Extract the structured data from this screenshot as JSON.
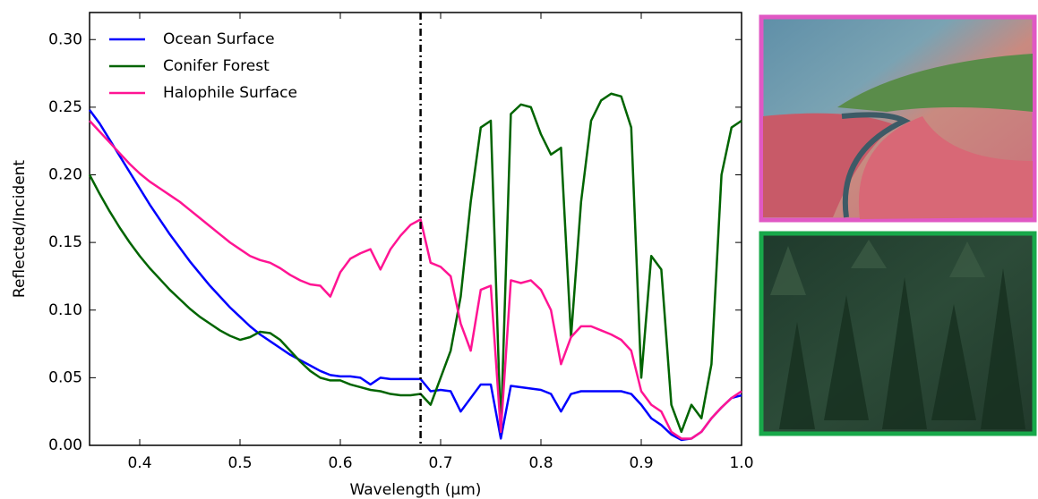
{
  "chart_data": {
    "type": "line",
    "x_label": "Wavelength (μm)",
    "y_label": "Reflected/Incident",
    "x": [
      0.35,
      0.36,
      0.37,
      0.38,
      0.39,
      0.4,
      0.41,
      0.42,
      0.43,
      0.44,
      0.45,
      0.46,
      0.47,
      0.48,
      0.49,
      0.5,
      0.51,
      0.52,
      0.53,
      0.54,
      0.55,
      0.56,
      0.57,
      0.58,
      0.59,
      0.6,
      0.61,
      0.62,
      0.63,
      0.64,
      0.65,
      0.66,
      0.67,
      0.68,
      0.69,
      0.7,
      0.71,
      0.72,
      0.73,
      0.74,
      0.75,
      0.76,
      0.77,
      0.78,
      0.79,
      0.8,
      0.81,
      0.82,
      0.83,
      0.84,
      0.85,
      0.86,
      0.87,
      0.88,
      0.89,
      0.9,
      0.91,
      0.92,
      0.93,
      0.94,
      0.95,
      0.96,
      0.97,
      0.98,
      0.99,
      1.0
    ],
    "series": [
      {
        "name": "Ocean Surface",
        "color": "#0000ff",
        "values": [
          0.248,
          0.238,
          0.226,
          0.214,
          0.202,
          0.19,
          0.178,
          0.167,
          0.156,
          0.146,
          0.136,
          0.127,
          0.118,
          0.11,
          0.102,
          0.095,
          0.088,
          0.082,
          0.077,
          0.072,
          0.067,
          0.063,
          0.059,
          0.055,
          0.052,
          0.051,
          0.051,
          0.05,
          0.045,
          0.05,
          0.049,
          0.049,
          0.049,
          0.049,
          0.04,
          0.041,
          0.04,
          0.025,
          0.035,
          0.045,
          0.045,
          0.005,
          0.044,
          0.043,
          0.042,
          0.041,
          0.038,
          0.025,
          0.038,
          0.04,
          0.04,
          0.04,
          0.04,
          0.04,
          0.038,
          0.03,
          0.02,
          0.015,
          0.008,
          0.004,
          0.005,
          0.01,
          0.02,
          0.028,
          0.035,
          0.037
        ]
      },
      {
        "name": "Conifer Forest",
        "color": "#006400",
        "values": [
          0.2,
          0.186,
          0.173,
          0.161,
          0.15,
          0.14,
          0.131,
          0.123,
          0.115,
          0.108,
          0.101,
          0.095,
          0.09,
          0.085,
          0.081,
          0.078,
          0.08,
          0.084,
          0.083,
          0.078,
          0.07,
          0.062,
          0.055,
          0.05,
          0.048,
          0.048,
          0.045,
          0.043,
          0.041,
          0.04,
          0.038,
          0.037,
          0.037,
          0.038,
          0.03,
          0.05,
          0.07,
          0.11,
          0.18,
          0.235,
          0.24,
          0.01,
          0.245,
          0.252,
          0.25,
          0.23,
          0.215,
          0.22,
          0.08,
          0.18,
          0.24,
          0.255,
          0.26,
          0.258,
          0.235,
          0.05,
          0.14,
          0.13,
          0.03,
          0.01,
          0.03,
          0.02,
          0.06,
          0.2,
          0.235,
          0.24
        ]
      },
      {
        "name": "Halophile Surface",
        "color": "#ff1493",
        "values": [
          0.24,
          0.232,
          0.224,
          0.216,
          0.208,
          0.201,
          0.195,
          0.19,
          0.185,
          0.18,
          0.174,
          0.168,
          0.162,
          0.156,
          0.15,
          0.145,
          0.14,
          0.137,
          0.135,
          0.131,
          0.126,
          0.122,
          0.119,
          0.118,
          0.11,
          0.128,
          0.138,
          0.142,
          0.145,
          0.13,
          0.145,
          0.155,
          0.163,
          0.167,
          0.135,
          0.132,
          0.125,
          0.09,
          0.07,
          0.115,
          0.118,
          0.01,
          0.122,
          0.12,
          0.122,
          0.115,
          0.1,
          0.06,
          0.08,
          0.088,
          0.088,
          0.085,
          0.082,
          0.078,
          0.07,
          0.04,
          0.03,
          0.025,
          0.01,
          0.005,
          0.005,
          0.01,
          0.02,
          0.028,
          0.035,
          0.04
        ]
      }
    ],
    "xlim": [
      0.35,
      1.0
    ],
    "ylim": [
      0,
      0.32
    ],
    "xticks": [
      0.4,
      0.5,
      0.6,
      0.7,
      0.8,
      0.9,
      {
        "value": 1.0,
        "label": "1.0"
      }
    ],
    "yticks": [
      {
        "value": 0,
        "label": "0.00"
      },
      0.05,
      {
        "value": 0.1,
        "label": "0.10"
      },
      0.15,
      {
        "value": 0.2,
        "label": "0.20"
      },
      0.25,
      {
        "value": 0.3,
        "label": "0.30"
      }
    ],
    "vline": 0.68,
    "legend": "upper left"
  }
}
